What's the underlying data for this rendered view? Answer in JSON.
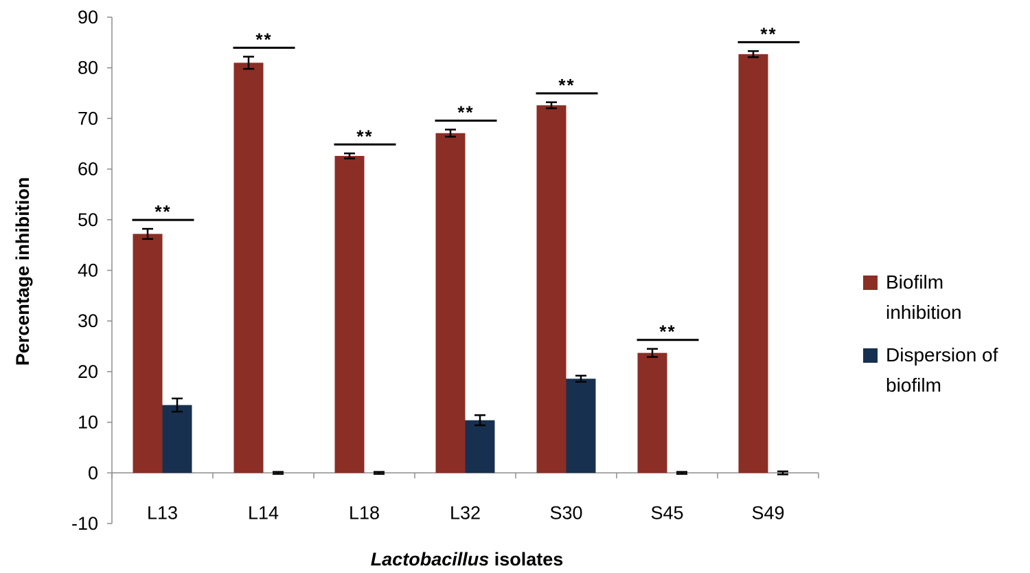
{
  "chart_data": {
    "type": "bar",
    "title": "",
    "xlabel_italic": "Lactobacillus",
    "xlabel_rest": " isolates",
    "ylabel": "Percentage inhibition",
    "ylim": [
      -10,
      90
    ],
    "yticks": [
      -10,
      0,
      10,
      20,
      30,
      40,
      50,
      60,
      70,
      80,
      90
    ],
    "ytick_labels": [
      "-10",
      "0",
      "10",
      "20",
      "30",
      "40",
      "50",
      "60",
      "70",
      "80",
      "90"
    ],
    "categories": [
      "L13",
      "L14",
      "L18",
      "L32",
      "S30",
      "S45",
      "S49"
    ],
    "legend_position": "right",
    "significance_label": "**",
    "significance": [
      true,
      true,
      true,
      true,
      true,
      true,
      true
    ],
    "series": [
      {
        "name": "Biofilm inhibition",
        "legend_lines": [
          "Biofilm",
          "inhibition"
        ],
        "color": "#8B2E25",
        "values": [
          47.2,
          81,
          62.6,
          67.1,
          72.6,
          23.7,
          82.7
        ],
        "errors": [
          1.0,
          1.2,
          0.5,
          0.7,
          0.6,
          0.8,
          0.6
        ]
      },
      {
        "name": "Dispersion of biofilm",
        "legend_lines": [
          "Dispersion of",
          "biofilm"
        ],
        "color": "#17304F",
        "values": [
          13.4,
          0,
          0,
          10.4,
          18.6,
          0,
          0
        ],
        "errors": [
          1.3,
          0.2,
          0.2,
          1.0,
          0.6,
          0.2,
          0.3
        ]
      }
    ]
  }
}
